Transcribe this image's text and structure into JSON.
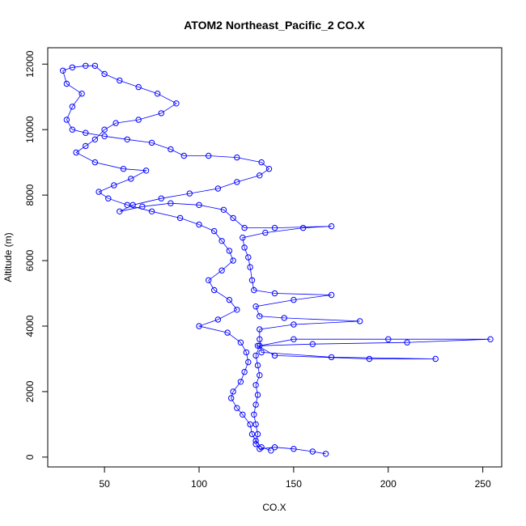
{
  "chart_data": {
    "type": "scatter",
    "title": "ATOM2 Northeast_Pacific_2 CO.X",
    "xlabel": "CO.X",
    "ylabel": "Altitude (m)",
    "xlim": [
      20,
      260
    ],
    "ylim": [
      -300,
      12500
    ],
    "x_ticks": [
      50,
      100,
      150,
      200,
      250
    ],
    "y_ticks": [
      0,
      2000,
      4000,
      6000,
      8000,
      10000,
      12000
    ],
    "grid": false,
    "legend": "none",
    "marker": "open-circle",
    "connected": true,
    "color": "#0000ff",
    "series": [
      {
        "points": [
          [
            167,
            100
          ],
          [
            160,
            170
          ],
          [
            150,
            250
          ],
          [
            140,
            300
          ],
          [
            132,
            250
          ],
          [
            130,
            400
          ],
          [
            131,
            700
          ],
          [
            130,
            1000
          ],
          [
            129,
            1300
          ],
          [
            130,
            1600
          ],
          [
            131,
            1900
          ],
          [
            130,
            2200
          ],
          [
            132,
            2500
          ],
          [
            131,
            2800
          ],
          [
            130,
            3100
          ],
          [
            132,
            3400
          ],
          [
            150,
            3600
          ],
          [
            200,
            3600
          ],
          [
            254,
            3600
          ],
          [
            210,
            3500
          ],
          [
            160,
            3450
          ],
          [
            131,
            3400
          ],
          [
            140,
            3100
          ],
          [
            190,
            3000
          ],
          [
            225,
            3000
          ],
          [
            170,
            3050
          ],
          [
            133,
            3200
          ],
          [
            132,
            3600
          ],
          [
            132,
            3900
          ],
          [
            150,
            4050
          ],
          [
            185,
            4150
          ],
          [
            145,
            4250
          ],
          [
            132,
            4300
          ],
          [
            130,
            4600
          ],
          [
            150,
            4800
          ],
          [
            170,
            4950
          ],
          [
            140,
            5000
          ],
          [
            129,
            5100
          ],
          [
            128,
            5400
          ],
          [
            127,
            5800
          ],
          [
            126,
            6100
          ],
          [
            124,
            6400
          ],
          [
            123,
            6700
          ],
          [
            135,
            6850
          ],
          [
            155,
            7000
          ],
          [
            170,
            7050
          ],
          [
            140,
            7000
          ],
          [
            124,
            7000
          ],
          [
            118,
            7300
          ],
          [
            113,
            7550
          ],
          [
            100,
            7700
          ],
          [
            85,
            7750
          ],
          [
            70,
            7650
          ],
          [
            58,
            7500
          ],
          [
            65,
            7700
          ],
          [
            80,
            7900
          ],
          [
            95,
            8050
          ],
          [
            110,
            8200
          ],
          [
            120,
            8400
          ],
          [
            132,
            8600
          ],
          [
            137,
            8800
          ],
          [
            133,
            9000
          ],
          [
            120,
            9150
          ],
          [
            105,
            9200
          ],
          [
            92,
            9200
          ],
          [
            85,
            9400
          ],
          [
            75,
            9600
          ],
          [
            62,
            9700
          ],
          [
            50,
            9800
          ],
          [
            40,
            9900
          ],
          [
            33,
            10000
          ],
          [
            30,
            10300
          ],
          [
            33,
            10700
          ],
          [
            38,
            11100
          ],
          [
            30,
            11400
          ],
          [
            28,
            11800
          ],
          [
            33,
            11900
          ],
          [
            40,
            11950
          ],
          [
            45,
            11950
          ],
          [
            50,
            11700
          ],
          [
            58,
            11500
          ],
          [
            68,
            11300
          ],
          [
            78,
            11100
          ],
          [
            88,
            10800
          ],
          [
            80,
            10500
          ],
          [
            68,
            10300
          ],
          [
            56,
            10200
          ],
          [
            50,
            10000
          ],
          [
            45,
            9700
          ],
          [
            40,
            9500
          ],
          [
            35,
            9300
          ],
          [
            45,
            9000
          ],
          [
            60,
            8800
          ],
          [
            72,
            8750
          ],
          [
            64,
            8500
          ],
          [
            55,
            8300
          ],
          [
            47,
            8100
          ],
          [
            52,
            7900
          ],
          [
            62,
            7700
          ],
          [
            75,
            7500
          ],
          [
            90,
            7300
          ],
          [
            100,
            7100
          ],
          [
            108,
            6900
          ],
          [
            112,
            6600
          ],
          [
            116,
            6300
          ],
          [
            118,
            6000
          ],
          [
            112,
            5700
          ],
          [
            105,
            5400
          ],
          [
            108,
            5100
          ],
          [
            116,
            4800
          ],
          [
            120,
            4500
          ],
          [
            110,
            4200
          ],
          [
            100,
            4000
          ],
          [
            115,
            3800
          ],
          [
            122,
            3500
          ],
          [
            125,
            3200
          ],
          [
            126,
            2900
          ],
          [
            124,
            2600
          ],
          [
            122,
            2300
          ],
          [
            118,
            2000
          ],
          [
            117,
            1800
          ],
          [
            120,
            1500
          ],
          [
            123,
            1300
          ],
          [
            127,
            1000
          ],
          [
            128,
            700
          ],
          [
            130,
            500
          ],
          [
            133,
            300
          ],
          [
            138,
            200
          ]
        ]
      }
    ]
  }
}
